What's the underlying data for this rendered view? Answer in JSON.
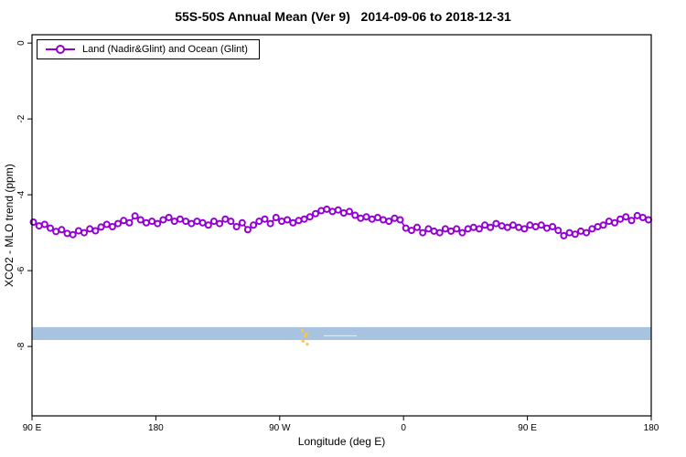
{
  "title": "55S-50S Annual Mean (Ver 9)   2014-09-06 to 2018-12-31",
  "legend": {
    "label": "Land (Nadir&Glint) and Ocean (Glint)"
  },
  "chart_data": {
    "type": "line",
    "title": "55S-50S Annual Mean (Ver 9)   2014-09-06 to 2018-12-31",
    "xlabel": "Longitude (deg E)",
    "ylabel": "XCO2 - MLO trend (ppm)",
    "xlim": [
      90,
      540
    ],
    "ylim": [
      0.22,
      -9.83
    ],
    "grid": false,
    "legend_position": "top-left",
    "x_ticks": [
      {
        "value": 90,
        "label": "90 E"
      },
      {
        "value": 180,
        "label": "180"
      },
      {
        "value": 270,
        "label": "90 W"
      },
      {
        "value": 360,
        "label": "0"
      },
      {
        "value": 450,
        "label": "90 E"
      },
      {
        "value": 540,
        "label": "180"
      }
    ],
    "y_ticks": [
      {
        "value": 0,
        "label": "0"
      },
      {
        "value": -2,
        "label": "-2"
      },
      {
        "value": -4,
        "label": "-4"
      },
      {
        "value": -6,
        "label": "-6"
      },
      {
        "value": -8,
        "label": "-8"
      }
    ],
    "band": {
      "color": "#a8c3e0",
      "from": -7.49,
      "to": -7.83
    },
    "annotations": [
      {
        "type": "dots",
        "color": "#ffc34d",
        "points": [
          [
            286.5,
            -7.58
          ],
          [
            288.5,
            -7.72
          ],
          [
            287.0,
            -7.86
          ],
          [
            290.0,
            -7.94
          ],
          [
            289.5,
            -7.66
          ]
        ]
      },
      {
        "type": "line",
        "color": "#ffe9b0",
        "width": 1.2,
        "points": [
          [
            302,
            -7.72
          ],
          [
            326,
            -7.72
          ]
        ]
      }
    ],
    "series": [
      {
        "name": "Land (Nadir&Glint) and Ocean (Glint)",
        "color": "#9400d3",
        "marker": "open-circle",
        "x_range": [
          91,
          538
        ],
        "values": [
          -4.72,
          -4.82,
          -4.78,
          -4.88,
          -4.97,
          -4.92,
          -5.02,
          -5.05,
          -4.95,
          -5.0,
          -4.9,
          -4.95,
          -4.85,
          -4.78,
          -4.84,
          -4.76,
          -4.68,
          -4.74,
          -4.56,
          -4.66,
          -4.74,
          -4.7,
          -4.76,
          -4.66,
          -4.6,
          -4.7,
          -4.64,
          -4.7,
          -4.76,
          -4.7,
          -4.74,
          -4.8,
          -4.7,
          -4.76,
          -4.64,
          -4.7,
          -4.84,
          -4.74,
          -4.92,
          -4.8,
          -4.7,
          -4.64,
          -4.76,
          -4.6,
          -4.7,
          -4.66,
          -4.74,
          -4.68,
          -4.64,
          -4.58,
          -4.5,
          -4.42,
          -4.38,
          -4.44,
          -4.4,
          -4.48,
          -4.44,
          -4.54,
          -4.62,
          -4.58,
          -4.64,
          -4.6,
          -4.66,
          -4.7,
          -4.62,
          -4.66,
          -4.88,
          -4.94,
          -4.86,
          -5.0,
          -4.9,
          -4.96,
          -5.0,
          -4.9,
          -4.96,
          -4.9,
          -5.0,
          -4.9,
          -4.86,
          -4.9,
          -4.8,
          -4.86,
          -4.76,
          -4.82,
          -4.86,
          -4.8,
          -4.86,
          -4.9,
          -4.8,
          -4.84,
          -4.8,
          -4.88,
          -4.84,
          -4.94,
          -5.08,
          -5.0,
          -5.04,
          -4.96,
          -5.0,
          -4.9,
          -4.84,
          -4.8,
          -4.7,
          -4.74,
          -4.64,
          -4.58,
          -4.68,
          -4.55,
          -4.6,
          -4.66
        ]
      }
    ]
  }
}
